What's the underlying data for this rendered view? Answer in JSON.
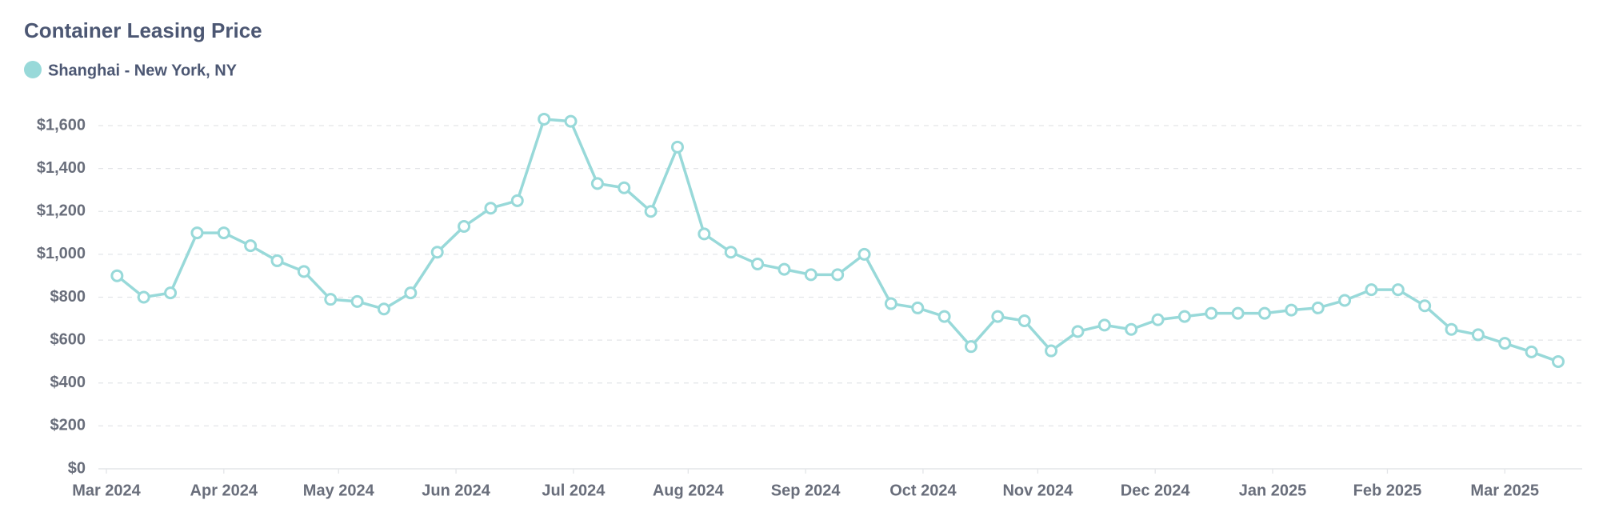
{
  "chart_data": {
    "type": "line",
    "title": "Container Leasing Price",
    "series": [
      {
        "name": "Shanghai - New York, NY",
        "color": "#98d9d9",
        "values": [
          900,
          800,
          820,
          1100,
          1100,
          1040,
          970,
          920,
          790,
          780,
          745,
          820,
          1010,
          1130,
          1215,
          1250,
          1630,
          1620,
          1330,
          1310,
          1200,
          1500,
          1095,
          1010,
          955,
          930,
          905,
          905,
          1000,
          770,
          750,
          710,
          570,
          710,
          690,
          550,
          640,
          670,
          650,
          695,
          710,
          725,
          725,
          725,
          740,
          750,
          785,
          835,
          835,
          760,
          650,
          625,
          585,
          545,
          500
        ]
      }
    ],
    "xlim": [
      -0.7,
      54.9
    ],
    "xticks": [
      {
        "value": -0.4,
        "label": "Mar 2024"
      },
      {
        "value": 4.0,
        "label": "Apr 2024"
      },
      {
        "value": 8.3,
        "label": "May 2024"
      },
      {
        "value": 12.7,
        "label": "Jun 2024"
      },
      {
        "value": 17.1,
        "label": "Jul 2024"
      },
      {
        "value": 21.4,
        "label": "Aug 2024"
      },
      {
        "value": 25.8,
        "label": "Sep 2024"
      },
      {
        "value": 30.2,
        "label": "Oct 2024"
      },
      {
        "value": 34.5,
        "label": "Nov 2024"
      },
      {
        "value": 38.9,
        "label": "Dec 2024"
      },
      {
        "value": 43.3,
        "label": "Jan 2025"
      },
      {
        "value": 47.6,
        "label": "Feb 2025"
      },
      {
        "value": 52.0,
        "label": "Mar 2025"
      }
    ],
    "ylim": [
      0,
      1600
    ],
    "yticks": [
      {
        "value": 0,
        "label": "$0"
      },
      {
        "value": 200,
        "label": "$200"
      },
      {
        "value": 400,
        "label": "$400"
      },
      {
        "value": 600,
        "label": "$600"
      },
      {
        "value": 800,
        "label": "$800"
      },
      {
        "value": 1000,
        "label": "$1,000"
      },
      {
        "value": 1200,
        "label": "$1,200"
      },
      {
        "value": 1400,
        "label": "$1,400"
      },
      {
        "value": 1600,
        "label": "$1,600"
      }
    ],
    "grid": true
  }
}
